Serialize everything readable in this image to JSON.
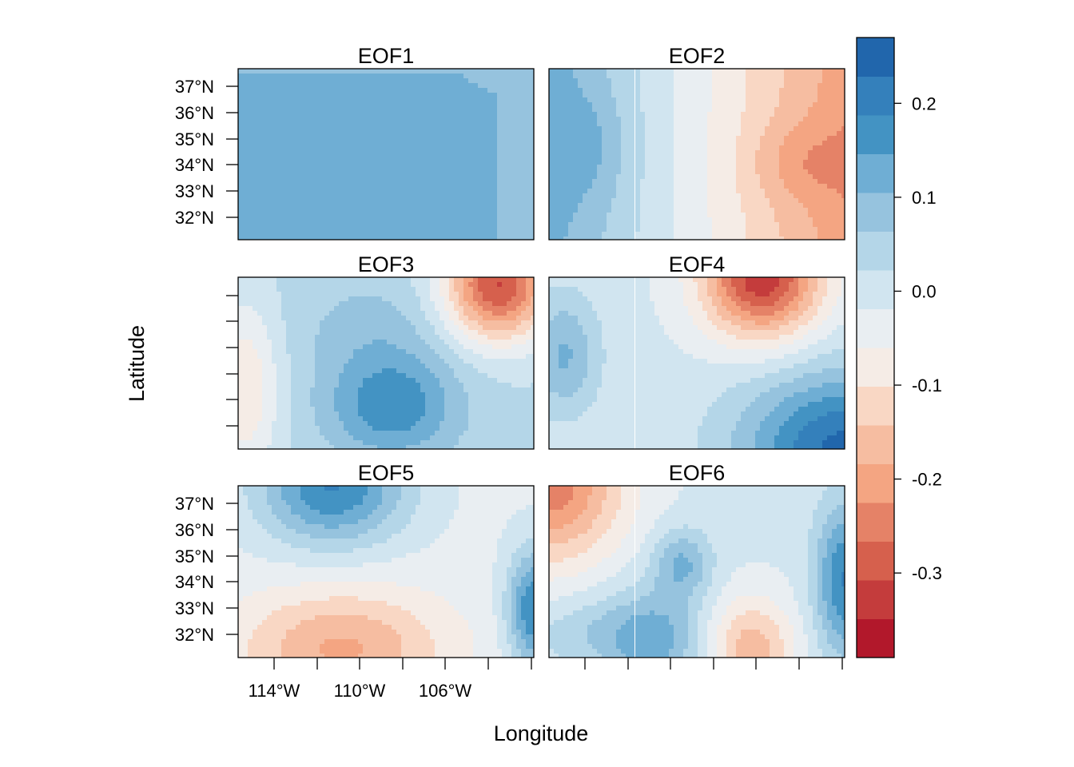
{
  "chart_data": {
    "type": "heatmap",
    "xlabel": "Longitude",
    "ylabel": "Latitude",
    "panels": [
      {
        "title": "EOF1",
        "pattern": "uniform_positive"
      },
      {
        "title": "EOF2",
        "pattern": "west_positive_east_negative"
      },
      {
        "title": "EOF3",
        "pattern": "northeast_negative_center_positive"
      },
      {
        "title": "EOF4",
        "pattern": "north_negative_southeast_positive"
      },
      {
        "title": "EOF5",
        "pattern": "north_positive_south_negative"
      },
      {
        "title": "EOF6",
        "pattern": "northwest_negative_banded"
      }
    ],
    "x_ticks": [
      "114°W",
      "110°W",
      "106°W"
    ],
    "y_ticks": [
      "37°N",
      "36°N",
      "35°N",
      "34°N",
      "33°N",
      "32°N"
    ],
    "colorbar": {
      "ticks": [
        "0.2",
        "0.1",
        "0.0",
        "-0.1",
        "-0.2",
        "-0.3"
      ],
      "tick_values": [
        0.2,
        0.1,
        0.0,
        -0.1,
        -0.2,
        -0.3
      ],
      "range": [
        -0.39,
        0.27
      ],
      "colors": [
        "#B2182B",
        "#C43C3C",
        "#D6604D",
        "#E58267",
        "#F4A582",
        "#F6BDA1",
        "#F9D7C4",
        "#F5ECE6",
        "#E9EEF2",
        "#D1E5F0",
        "#B4D6E8",
        "#96C3DE",
        "#6FAED4",
        "#4393C3",
        "#3480BB",
        "#2166AC"
      ]
    }
  }
}
